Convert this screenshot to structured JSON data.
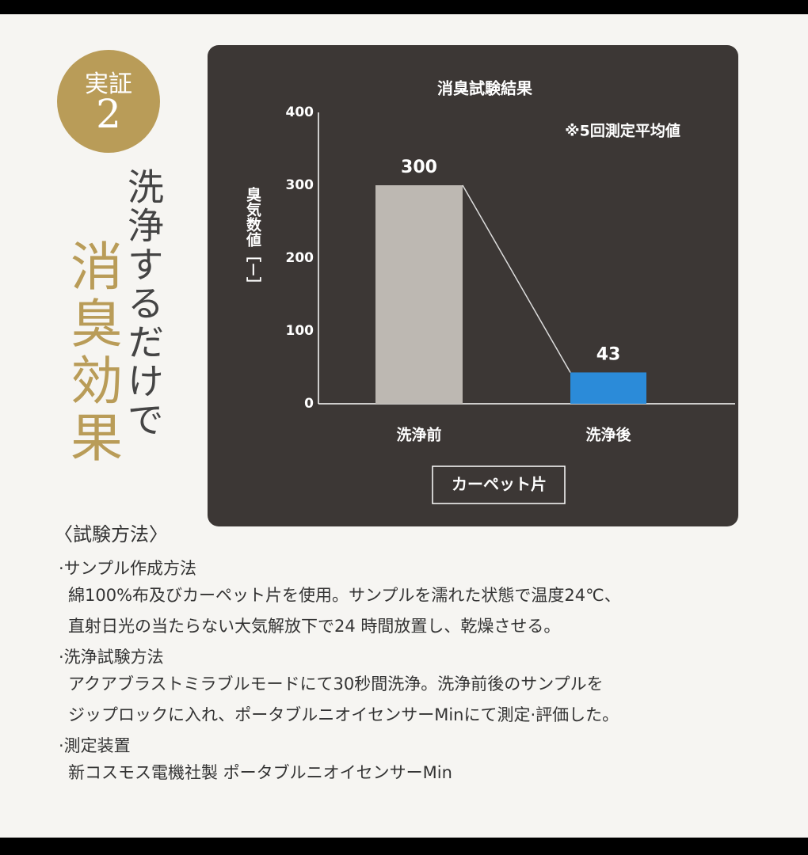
{
  "badge": {
    "label": "実証",
    "number": "2"
  },
  "headline": {
    "sub": "洗浄するだけで",
    "main": "消臭効果"
  },
  "chart_data": {
    "type": "bar",
    "title": "消臭試験結果",
    "note": "※5回測定平均値",
    "y_label": "臭気数値［－］",
    "x_label": "カーペット片",
    "categories": [
      "洗浄前",
      "洗浄後"
    ],
    "values": [
      300,
      43
    ],
    "colors": [
      "#bdb8b2",
      "#2b8bd9"
    ],
    "ylim": [
      0,
      400
    ],
    "yticks": [
      0,
      100,
      200,
      300,
      400
    ],
    "grid": false,
    "connector": true
  },
  "method": {
    "title": "〈試験方法〉",
    "items": [
      {
        "heading": "·サンプル作成方法",
        "lines": [
          "綿100%布及びカーペット片を使用。サンプルを濡れた状態で温度24℃、",
          "直射日光の当たらない大気解放下で24 時間放置し、乾燥させる。"
        ]
      },
      {
        "heading": "·洗浄試験方法",
        "lines": [
          "アクアブラストミラブルモードにて30秒間洗浄。洗浄前後のサンプルを",
          "ジップロックに入れ、ポータブルニオイセンサーMinにて測定·評価した。"
        ]
      },
      {
        "heading": "·測定装置",
        "lines": [
          "新コスモス電機社製 ポータブルニオイセンサーMin"
        ]
      }
    ]
  }
}
